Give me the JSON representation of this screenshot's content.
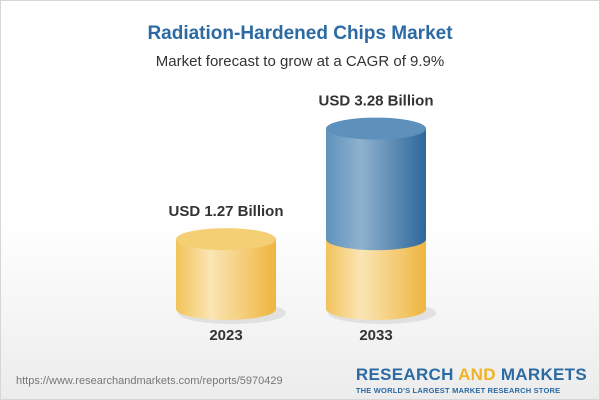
{
  "title": "Radiation-Hardened Chips Market",
  "subtitle": "Market forecast to grow at a CAGR of 9.9%",
  "chart_data": {
    "type": "bar",
    "style": "3d-cylinder",
    "categories": [
      "2023",
      "2033"
    ],
    "values": [
      1.27,
      3.28
    ],
    "data_labels": [
      "USD 1.27 Billion",
      "USD 3.28 Billion"
    ],
    "unit": "USD Billion",
    "colors": {
      "base": "#f2c35a",
      "growth": "#3f7fb3"
    }
  },
  "footer": {
    "url": "https://www.researchandmarkets.com/reports/5970429",
    "logo": {
      "part1": "RESEARCH ",
      "part2": "AND",
      "part3": " MARKETS",
      "tagline": "THE WORLD'S LARGEST MARKET RESEARCH STORE"
    }
  }
}
